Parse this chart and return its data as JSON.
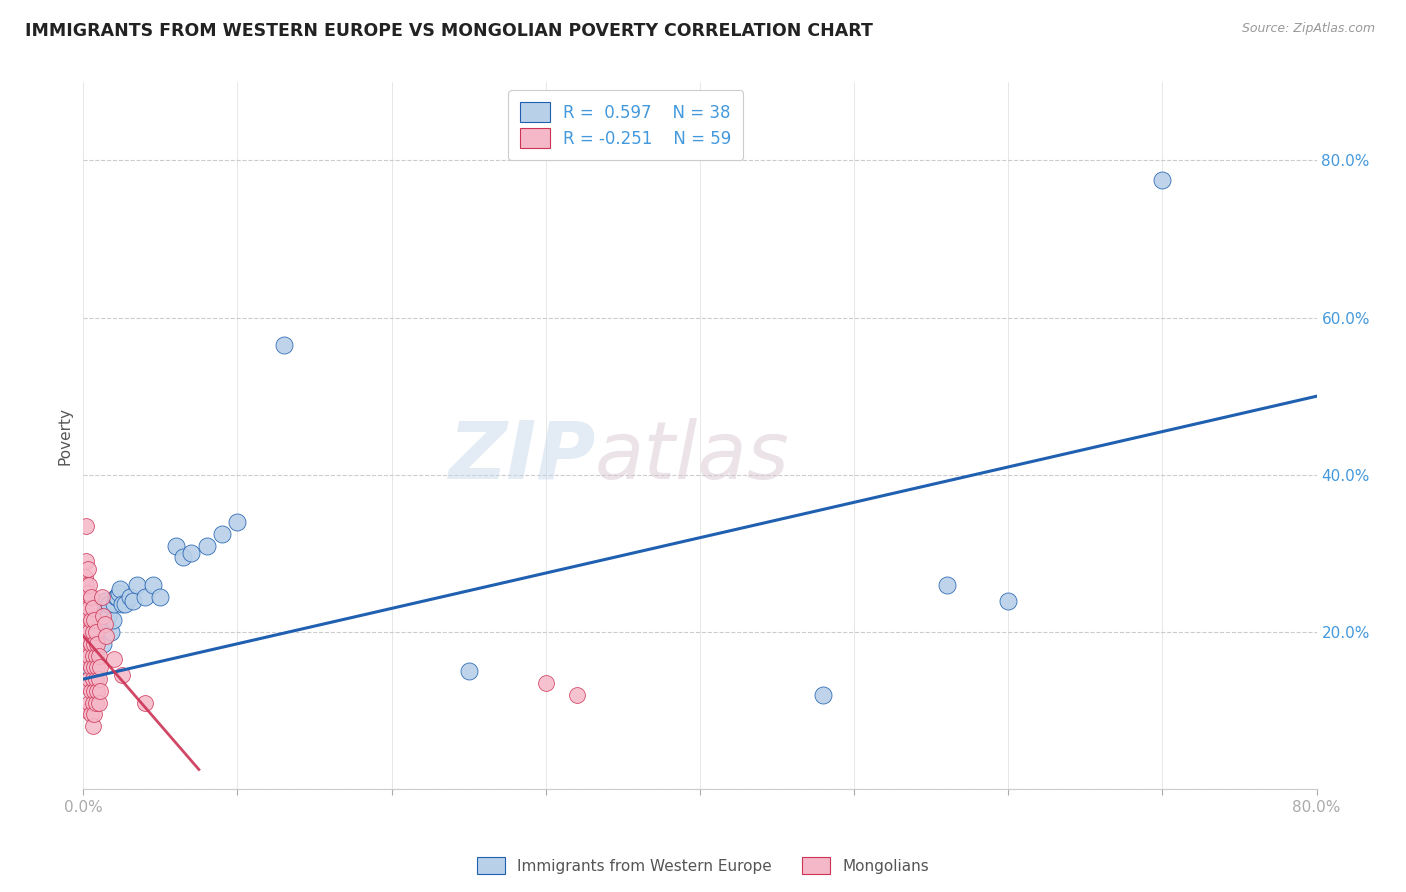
{
  "title": "IMMIGRANTS FROM WESTERN EUROPE VS MONGOLIAN POVERTY CORRELATION CHART",
  "source": "Source: ZipAtlas.com",
  "ylabel": "Poverty",
  "watermark_zip": "ZIP",
  "watermark_atlas": "atlas",
  "legend_label1": "Immigrants from Western Europe",
  "legend_label2": "Mongolians",
  "blue_color": "#b8d0e8",
  "pink_color": "#f5b8c8",
  "line_blue": "#2060b0",
  "line_pink": "#cc3355",
  "blue_scatter": [
    [
      0.004,
      0.155
    ],
    [
      0.006,
      0.175
    ],
    [
      0.007,
      0.14
    ],
    [
      0.008,
      0.19
    ],
    [
      0.009,
      0.2
    ],
    [
      0.01,
      0.215
    ],
    [
      0.011,
      0.22
    ],
    [
      0.012,
      0.21
    ],
    [
      0.013,
      0.185
    ],
    [
      0.014,
      0.24
    ],
    [
      0.015,
      0.215
    ],
    [
      0.016,
      0.22
    ],
    [
      0.017,
      0.235
    ],
    [
      0.018,
      0.2
    ],
    [
      0.019,
      0.215
    ],
    [
      0.02,
      0.235
    ],
    [
      0.021,
      0.245
    ],
    [
      0.022,
      0.245
    ],
    [
      0.023,
      0.25
    ],
    [
      0.024,
      0.255
    ],
    [
      0.025,
      0.235
    ],
    [
      0.027,
      0.235
    ],
    [
      0.03,
      0.245
    ],
    [
      0.032,
      0.24
    ],
    [
      0.035,
      0.26
    ],
    [
      0.04,
      0.245
    ],
    [
      0.045,
      0.26
    ],
    [
      0.05,
      0.245
    ],
    [
      0.06,
      0.31
    ],
    [
      0.065,
      0.295
    ],
    [
      0.07,
      0.3
    ],
    [
      0.08,
      0.31
    ],
    [
      0.09,
      0.325
    ],
    [
      0.1,
      0.34
    ],
    [
      0.13,
      0.565
    ],
    [
      0.25,
      0.15
    ],
    [
      0.48,
      0.12
    ],
    [
      0.56,
      0.26
    ],
    [
      0.6,
      0.24
    ],
    [
      0.7,
      0.775
    ]
  ],
  "pink_scatter": [
    [
      0.001,
      0.27
    ],
    [
      0.001,
      0.24
    ],
    [
      0.001,
      0.21
    ],
    [
      0.001,
      0.18
    ],
    [
      0.002,
      0.29
    ],
    [
      0.002,
      0.26
    ],
    [
      0.002,
      0.23
    ],
    [
      0.002,
      0.2
    ],
    [
      0.002,
      0.17
    ],
    [
      0.002,
      0.335
    ],
    [
      0.003,
      0.28
    ],
    [
      0.003,
      0.25
    ],
    [
      0.003,
      0.22
    ],
    [
      0.003,
      0.19
    ],
    [
      0.003,
      0.16
    ],
    [
      0.003,
      0.13
    ],
    [
      0.003,
      0.1
    ],
    [
      0.004,
      0.26
    ],
    [
      0.004,
      0.23
    ],
    [
      0.004,
      0.2
    ],
    [
      0.004,
      0.17
    ],
    [
      0.004,
      0.14
    ],
    [
      0.004,
      0.11
    ],
    [
      0.005,
      0.245
    ],
    [
      0.005,
      0.215
    ],
    [
      0.005,
      0.185
    ],
    [
      0.005,
      0.155
    ],
    [
      0.005,
      0.125
    ],
    [
      0.005,
      0.095
    ],
    [
      0.006,
      0.23
    ],
    [
      0.006,
      0.2
    ],
    [
      0.006,
      0.17
    ],
    [
      0.006,
      0.14
    ],
    [
      0.006,
      0.11
    ],
    [
      0.006,
      0.08
    ],
    [
      0.007,
      0.215
    ],
    [
      0.007,
      0.185
    ],
    [
      0.007,
      0.155
    ],
    [
      0.007,
      0.125
    ],
    [
      0.007,
      0.095
    ],
    [
      0.008,
      0.2
    ],
    [
      0.008,
      0.17
    ],
    [
      0.008,
      0.14
    ],
    [
      0.008,
      0.11
    ],
    [
      0.009,
      0.185
    ],
    [
      0.009,
      0.155
    ],
    [
      0.009,
      0.125
    ],
    [
      0.01,
      0.17
    ],
    [
      0.01,
      0.14
    ],
    [
      0.01,
      0.11
    ],
    [
      0.011,
      0.155
    ],
    [
      0.011,
      0.125
    ],
    [
      0.012,
      0.245
    ],
    [
      0.013,
      0.22
    ],
    [
      0.014,
      0.21
    ],
    [
      0.015,
      0.195
    ],
    [
      0.02,
      0.165
    ],
    [
      0.025,
      0.145
    ],
    [
      0.04,
      0.11
    ],
    [
      0.3,
      0.135
    ],
    [
      0.32,
      0.12
    ]
  ],
  "xlim": [
    0.0,
    0.8
  ],
  "ylim": [
    0.0,
    0.9
  ],
  "ytick_vals": [
    0.0,
    0.2,
    0.4,
    0.6,
    0.8
  ],
  "ytick_labels": [
    "",
    "20.0%",
    "40.0%",
    "60.0%",
    "80.0%"
  ],
  "background_color": "#ffffff",
  "grid_color": "#cccccc"
}
